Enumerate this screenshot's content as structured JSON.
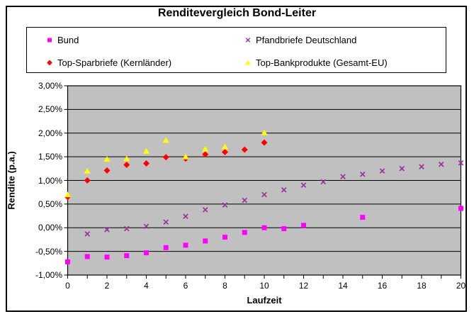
{
  "title": "Renditevergleich Bond-Leiter",
  "colors": {
    "plot_background": "#C0C0C0",
    "gridline": "#000000",
    "border": "#000000",
    "series_bund": "#FF00FF",
    "series_pfandbriefe": "#993399",
    "series_sparbriefe": "#FF0000",
    "series_bankprodukte": "#FFFF00"
  },
  "chart_data": {
    "type": "scatter",
    "title": "Renditevergleich Bond-Leiter",
    "xlabel": "Laufzeit",
    "ylabel": "Rendite (p.a.)",
    "xlim": [
      0,
      20
    ],
    "ylim": [
      -1.0,
      3.0
    ],
    "grid": true,
    "legend_position": "top",
    "y_ticks": [
      {
        "value": 3.0,
        "label": "3,00%"
      },
      {
        "value": 2.5,
        "label": "2,50%"
      },
      {
        "value": 2.0,
        "label": "2,00%"
      },
      {
        "value": 1.5,
        "label": "1,50%"
      },
      {
        "value": 1.0,
        "label": "1,00%"
      },
      {
        "value": 0.5,
        "label": "0,50%"
      },
      {
        "value": 0.0,
        "label": "0,00%"
      },
      {
        "value": -0.5,
        "label": "-0,50%"
      },
      {
        "value": -1.0,
        "label": "-1,00%"
      }
    ],
    "x_ticks": [
      {
        "value": 0,
        "label": "0"
      },
      {
        "value": 2,
        "label": "2"
      },
      {
        "value": 4,
        "label": "4"
      },
      {
        "value": 6,
        "label": "6"
      },
      {
        "value": 8,
        "label": "8"
      },
      {
        "value": 10,
        "label": "10"
      },
      {
        "value": 12,
        "label": "12"
      },
      {
        "value": 14,
        "label": "14"
      },
      {
        "value": 16,
        "label": "16"
      },
      {
        "value": 18,
        "label": "18"
      },
      {
        "value": 20,
        "label": "20"
      }
    ],
    "x_minor_tick_step": 1,
    "series": [
      {
        "name": "Bund",
        "marker": "square",
        "color": "#FF00FF",
        "points": [
          [
            0,
            -0.72
          ],
          [
            1,
            -0.61
          ],
          [
            2,
            -0.62
          ],
          [
            3,
            -0.59
          ],
          [
            4,
            -0.53
          ],
          [
            5,
            -0.42
          ],
          [
            6,
            -0.37
          ],
          [
            7,
            -0.28
          ],
          [
            8,
            -0.2
          ],
          [
            9,
            -0.1
          ],
          [
            10,
            0.0
          ],
          [
            11,
            -0.02
          ],
          [
            12,
            0.05
          ],
          [
            15,
            0.22
          ],
          [
            20,
            0.41
          ]
        ]
      },
      {
        "name": "Pfandbriefe Deutschland",
        "marker": "x",
        "color": "#993399",
        "points": [
          [
            1,
            -0.13
          ],
          [
            2,
            -0.04
          ],
          [
            3,
            -0.02
          ],
          [
            4,
            0.03
          ],
          [
            5,
            0.12
          ],
          [
            6,
            0.24
          ],
          [
            7,
            0.38
          ],
          [
            8,
            0.48
          ],
          [
            9,
            0.58
          ],
          [
            10,
            0.7
          ],
          [
            11,
            0.8
          ],
          [
            12,
            0.9
          ],
          [
            13,
            0.97
          ],
          [
            14,
            1.08
          ],
          [
            15,
            1.13
          ],
          [
            16,
            1.2
          ],
          [
            17,
            1.25
          ],
          [
            18,
            1.29
          ],
          [
            19,
            1.34
          ],
          [
            20,
            1.37
          ]
        ]
      },
      {
        "name": "Top-Sparbriefe (Kernländer)",
        "marker": "diamond",
        "color": "#FF0000",
        "points": [
          [
            0,
            0.65
          ],
          [
            1,
            1.0
          ],
          [
            2,
            1.21
          ],
          [
            3,
            1.33
          ],
          [
            4,
            1.36
          ],
          [
            5,
            1.49
          ],
          [
            6,
            1.46
          ],
          [
            7,
            1.55
          ],
          [
            8,
            1.6
          ],
          [
            9,
            1.65
          ],
          [
            10,
            1.8
          ]
        ]
      },
      {
        "name": "Top-Bankprodukte (Gesamt-EU)",
        "marker": "triangle",
        "color": "#FFFF00",
        "points": [
          [
            0,
            0.7
          ],
          [
            1,
            1.2
          ],
          [
            2,
            1.45
          ],
          [
            3,
            1.46
          ],
          [
            4,
            1.62
          ],
          [
            5,
            1.85
          ],
          [
            6,
            1.5
          ],
          [
            7,
            1.66
          ],
          [
            8,
            1.71
          ],
          [
            10,
            2.01
          ]
        ]
      }
    ]
  }
}
